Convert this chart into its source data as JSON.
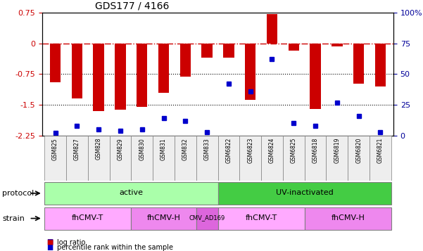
{
  "title": "GDS177 / 4166",
  "samples": [
    "GSM825",
    "GSM827",
    "GSM828",
    "GSM829",
    "GSM830",
    "GSM831",
    "GSM832",
    "GSM833",
    "GSM6822",
    "GSM6823",
    "GSM6824",
    "GSM6825",
    "GSM6818",
    "GSM6819",
    "GSM6820",
    "GSM6821"
  ],
  "log_ratio": [
    -0.95,
    -1.35,
    -1.65,
    -1.62,
    -1.55,
    -1.2,
    -0.82,
    -0.35,
    -0.35,
    -1.38,
    0.72,
    -0.18,
    -1.6,
    -0.08,
    -0.98,
    -1.05
  ],
  "percentile": [
    2,
    8,
    5,
    4,
    5,
    14,
    12,
    3,
    42,
    36,
    62,
    10,
    8,
    27,
    16,
    3
  ],
  "ylim": [
    -2.25,
    0.75
  ],
  "y_ticks_left": [
    0.75,
    0,
    -0.75,
    -1.5,
    -2.25
  ],
  "y_ticks_right_vals": [
    100,
    75,
    50,
    25,
    0
  ],
  "y_ticks_right_pos": [
    0.75,
    0,
    -0.75,
    -1.5,
    -2.25
  ],
  "bar_color": "#cc0000",
  "dot_color": "#0000cc",
  "zero_line_color": "#cc0000",
  "dot_line_color": "#000099",
  "grid_line_color": "#000000",
  "protocol_groups": [
    {
      "label": "active",
      "start": 0,
      "end": 8,
      "color": "#aaffaa"
    },
    {
      "label": "UV-inactivated",
      "start": 8,
      "end": 16,
      "color": "#44cc44"
    }
  ],
  "strain_groups": [
    {
      "label": "fhCMV-T",
      "start": 0,
      "end": 4,
      "color": "#ffaaff"
    },
    {
      "label": "fhCMV-H",
      "start": 4,
      "end": 7,
      "color": "#ee88ee"
    },
    {
      "label": "CMV_AD169",
      "start": 7,
      "end": 8,
      "color": "#dd66dd"
    },
    {
      "label": "fhCMV-T",
      "start": 8,
      "end": 12,
      "color": "#ffaaff"
    },
    {
      "label": "fhCMV-H",
      "start": 12,
      "end": 16,
      "color": "#ee88ee"
    }
  ],
  "legend_items": [
    {
      "label": "log ratio",
      "color": "#cc0000"
    },
    {
      "label": "percentile rank within the sample",
      "color": "#0000cc"
    }
  ]
}
